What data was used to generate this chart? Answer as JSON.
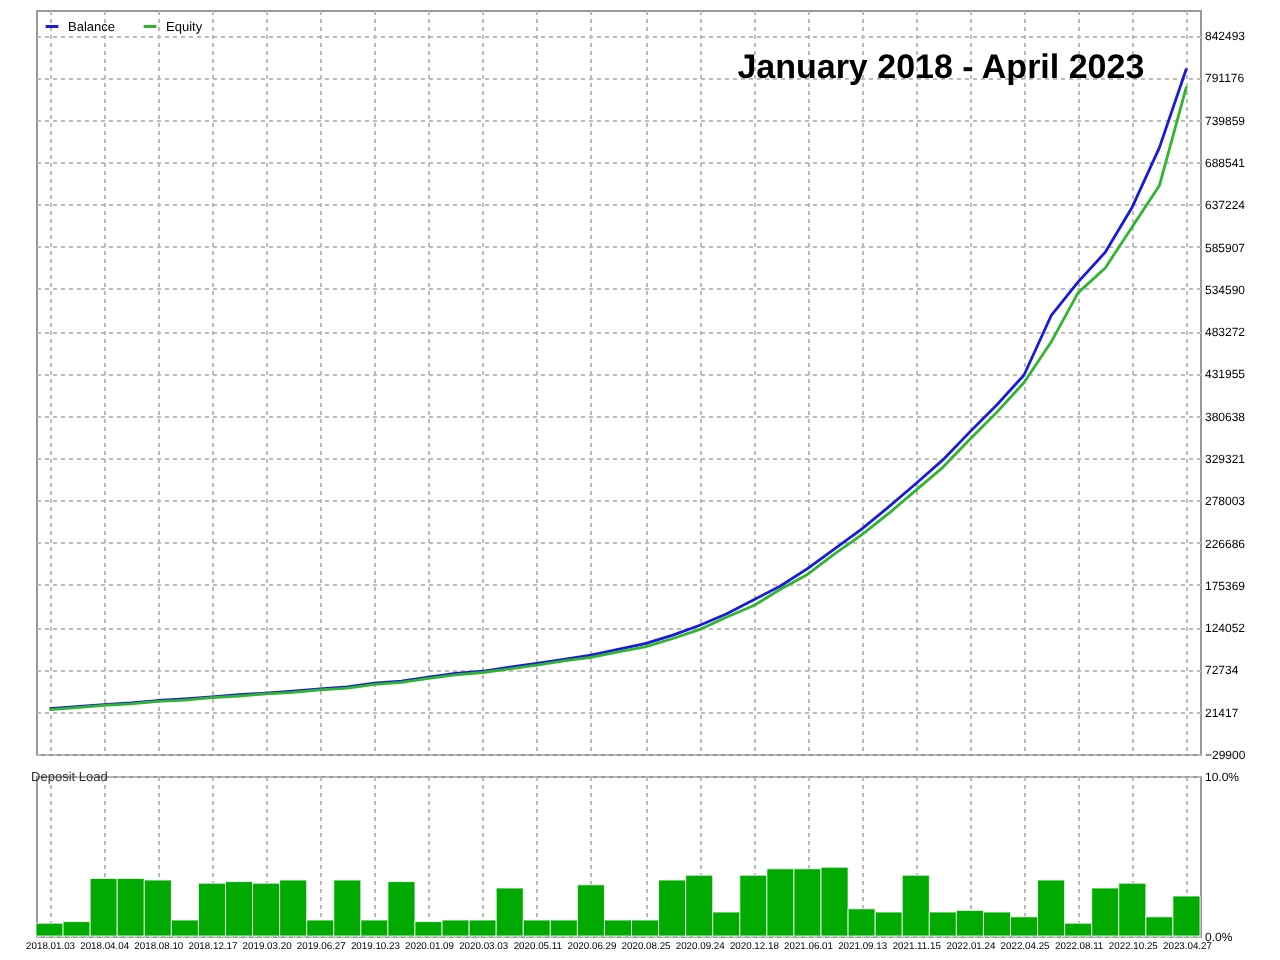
{
  "chart_data": [
    {
      "type": "line",
      "title": "January 2018 - April 2023",
      "categories": [
        "2018.01.03",
        null,
        "2018.04.04",
        null,
        "2018.08.10",
        null,
        "2018.12.17",
        null,
        "2019.03.20",
        null,
        "2019.06.27",
        null,
        "2019.10.23",
        null,
        "2020.01.09",
        null,
        "2020.03.03",
        null,
        "2020.05.11",
        null,
        "2020.06.29",
        null,
        "2020.08.25",
        null,
        "2020.09.24",
        null,
        "2020.12.18",
        null,
        "2021.06.01",
        null,
        "2021.09.13",
        null,
        "2021.11.15",
        null,
        "2022.01.24",
        null,
        "2022.04.25",
        null,
        "2022.08.11",
        null,
        "2022.10.25",
        null,
        "2023.04.27"
      ],
      "series": [
        {
          "name": "Balance",
          "color": "#1a1adc",
          "values": [
            25000,
            27500,
            30000,
            32000,
            35000,
            37000,
            39500,
            42000,
            44000,
            46500,
            49000,
            51500,
            56000,
            58500,
            63500,
            68000,
            70500,
            75500,
            80000,
            85000,
            90000,
            97000,
            104000,
            114000,
            126000,
            140000,
            157000,
            174000,
            195000,
            219000,
            243000,
            270000,
            298000,
            327000,
            361000,
            394000,
            430000,
            502000,
            543000,
            579000,
            634000,
            706000,
            802000
          ]
        },
        {
          "name": "Equity",
          "color": "#2fb52f",
          "values": [
            24000,
            26500,
            29000,
            31000,
            34000,
            35500,
            38500,
            40500,
            43000,
            45000,
            48000,
            50000,
            54500,
            57000,
            62000,
            66000,
            69000,
            73500,
            78000,
            83000,
            87500,
            94000,
            100000,
            110000,
            121000,
            136000,
            150000,
            170000,
            188000,
            213000,
            236000,
            262000,
            290000,
            318000,
            352000,
            385000,
            421000,
            470000,
            530000,
            560000,
            610000,
            660000,
            780000
          ]
        }
      ],
      "ylim": [
        -29900,
        873000
      ],
      "yticks": [
        -29900,
        21417,
        72734,
        124052,
        175369,
        226686,
        278003,
        329321,
        380638,
        431955,
        483272,
        534590,
        585907,
        637224,
        688541,
        739859,
        791176,
        842493
      ],
      "grid": true,
      "legend": "top left",
      "tick_labels": "y"
    },
    {
      "type": "bar",
      "title": "Deposit Load",
      "categories": [
        "2018.01.03",
        null,
        "2018.04.04",
        null,
        "2018.08.10",
        null,
        "2018.12.17",
        null,
        "2019.03.20",
        null,
        "2019.06.27",
        null,
        "2019.10.23",
        null,
        "2020.01.09",
        null,
        "2020.03.03",
        null,
        "2020.05.11",
        null,
        "2020.06.29",
        null,
        "2020.08.25",
        null,
        "2020.09.24",
        null,
        "2020.12.18",
        null,
        "2021.06.01",
        null,
        "2021.09.13",
        null,
        "2021.11.15",
        null,
        "2022.01.24",
        null,
        "2022.04.25",
        null,
        "2022.08.11",
        null,
        "2022.10.25",
        null,
        "2023.04.27"
      ],
      "values": [
        0.8,
        0.9,
        3.6,
        3.6,
        3.5,
        1.0,
        3.3,
        3.4,
        3.3,
        3.5,
        1.0,
        3.5,
        1.0,
        3.4,
        0.9,
        1.0,
        1.0,
        3.0,
        1.0,
        1.0,
        3.2,
        1.0,
        1.0,
        3.5,
        3.8,
        1.5,
        3.8,
        4.2,
        4.2,
        4.3,
        1.7,
        1.5,
        3.8,
        1.5,
        1.6,
        1.5,
        1.2,
        3.5,
        0.8,
        3.0,
        3.3,
        1.2,
        2.5
      ],
      "color": "#00aa00",
      "ylim": [
        0,
        10
      ],
      "yticks": [
        {
          "value": 0,
          "label": "0.0%"
        },
        {
          "value": 10,
          "label": "10.0%"
        }
      ],
      "grid": true
    }
  ]
}
